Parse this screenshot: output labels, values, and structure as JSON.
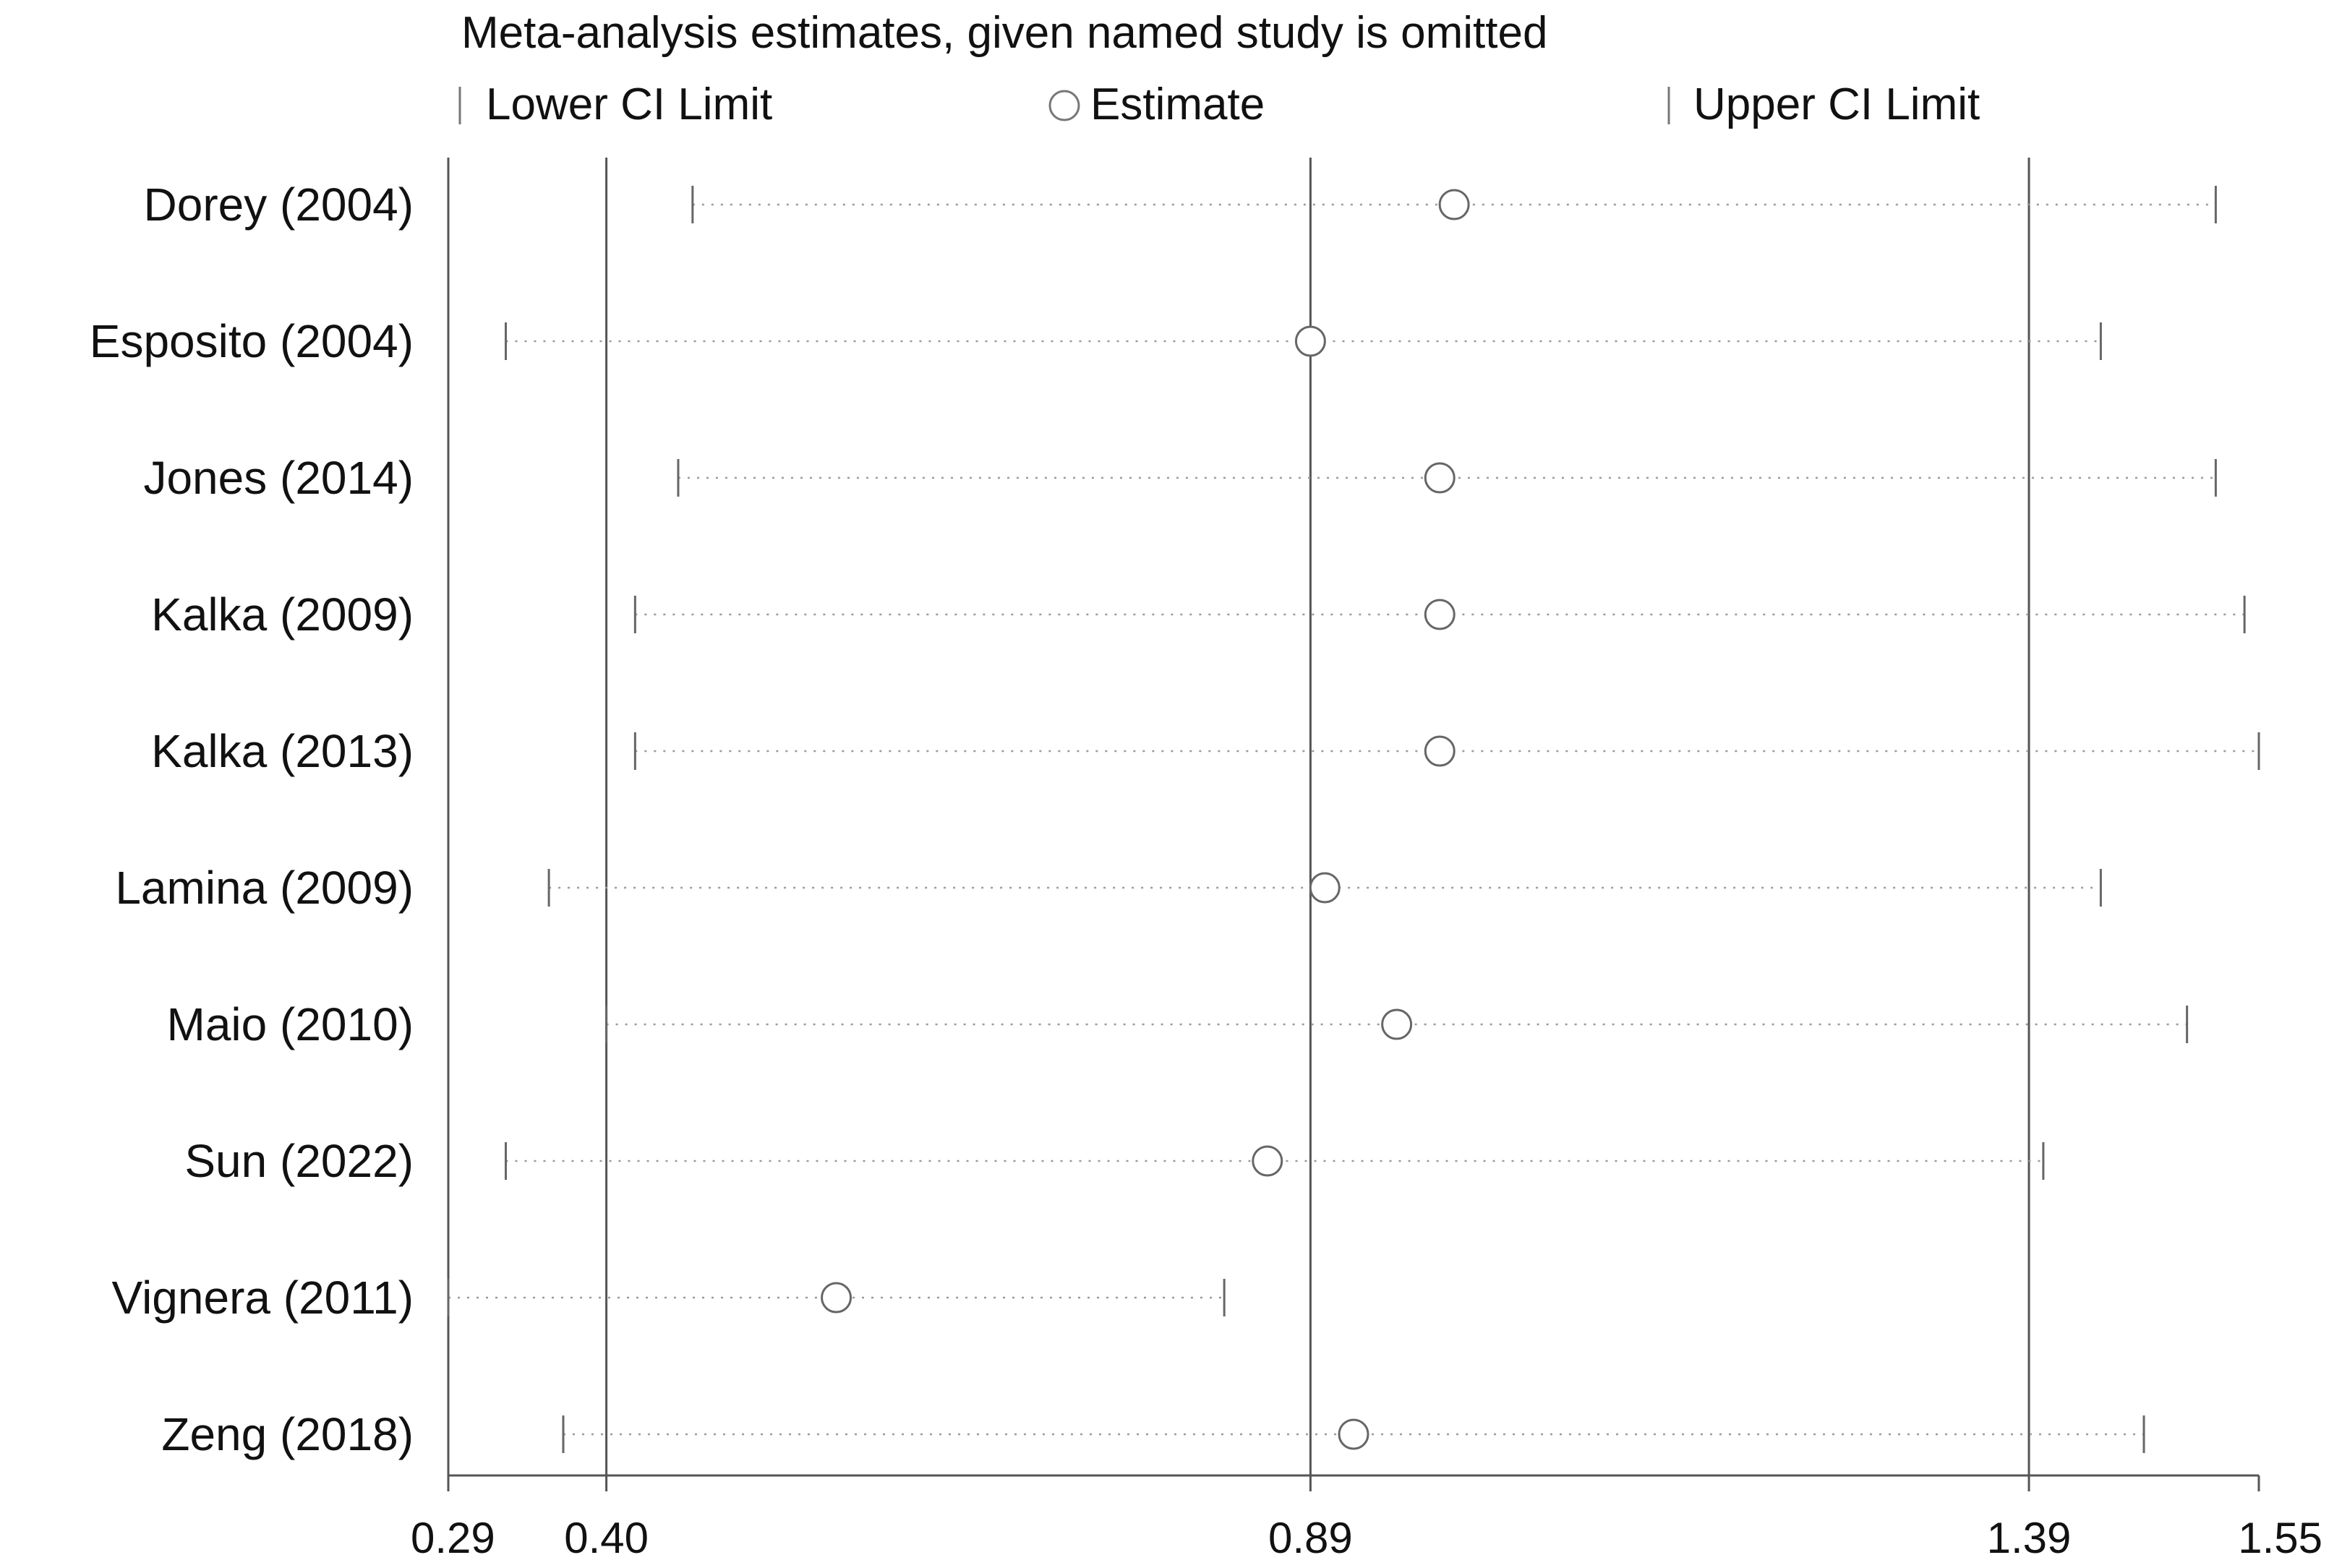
{
  "chart_data": {
    "type": "scatter",
    "title": "Meta-analysis estimates, given named study is omitted",
    "legend": {
      "placement": "top",
      "entries": [
        "Lower CI Limit",
        "Estimate",
        "Upper CI Limit"
      ]
    },
    "x_ticks": [
      "0.29",
      "0.40",
      "0.89",
      "1.39",
      "1.55"
    ],
    "reference_lines": [
      0.4,
      0.89,
      1.39
    ],
    "xlim": [
      0.29,
      1.55
    ],
    "studies": [
      {
        "name": "Dorey (2004)",
        "lower": 0.46,
        "estimate": 0.99,
        "upper": 1.52
      },
      {
        "name": "Esposito (2004)",
        "lower": 0.33,
        "estimate": 0.89,
        "upper": 1.44
      },
      {
        "name": "Jones (2014)",
        "lower": 0.45,
        "estimate": 0.98,
        "upper": 1.52
      },
      {
        "name": "Kalka (2009)",
        "lower": 0.42,
        "estimate": 0.98,
        "upper": 1.54
      },
      {
        "name": "Kalka (2013)",
        "lower": 0.42,
        "estimate": 0.98,
        "upper": 1.55
      },
      {
        "name": "Lamina (2009)",
        "lower": 0.36,
        "estimate": 0.9,
        "upper": 1.44
      },
      {
        "name": "Maio (2010)",
        "lower": 0.4,
        "estimate": 0.95,
        "upper": 1.5
      },
      {
        "name": "Sun (2022)",
        "lower": 0.33,
        "estimate": 0.86,
        "upper": 1.4
      },
      {
        "name": "Vignera (2011)",
        "lower": 0.29,
        "estimate": 0.56,
        "upper": 0.83
      },
      {
        "name": "Zeng (2018)",
        "lower": 0.37,
        "estimate": 0.92,
        "upper": 1.47
      }
    ]
  }
}
